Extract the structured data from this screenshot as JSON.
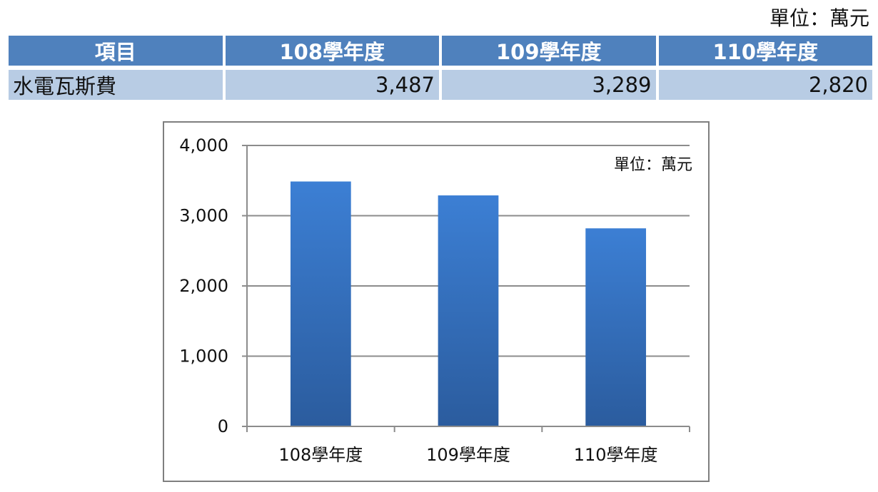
{
  "unit_label": "單位：萬元",
  "table": {
    "headers": [
      "項目",
      "108學年度",
      "109學年度",
      "110學年度"
    ],
    "row": {
      "label": "水電瓦斯費",
      "values": [
        "3,487",
        "3,289",
        "2,820"
      ]
    }
  },
  "colors": {
    "header_bg": "#4f81bd",
    "row_bg": "#b8cce4",
    "bar_top": "#3c7fd4",
    "bar_bottom": "#2b5c9e"
  },
  "chart_data": {
    "type": "bar",
    "categories": [
      "108學年度",
      "109學年度",
      "110學年度"
    ],
    "values": [
      3487,
      3289,
      2820
    ],
    "unit_label": "單位：萬元",
    "ylim": [
      0,
      4000
    ],
    "yticks": [
      0,
      1000,
      2000,
      3000,
      4000
    ],
    "ytick_labels": [
      "0",
      "1,000",
      "2,000",
      "3,000",
      "4,000"
    ],
    "grid": true
  }
}
